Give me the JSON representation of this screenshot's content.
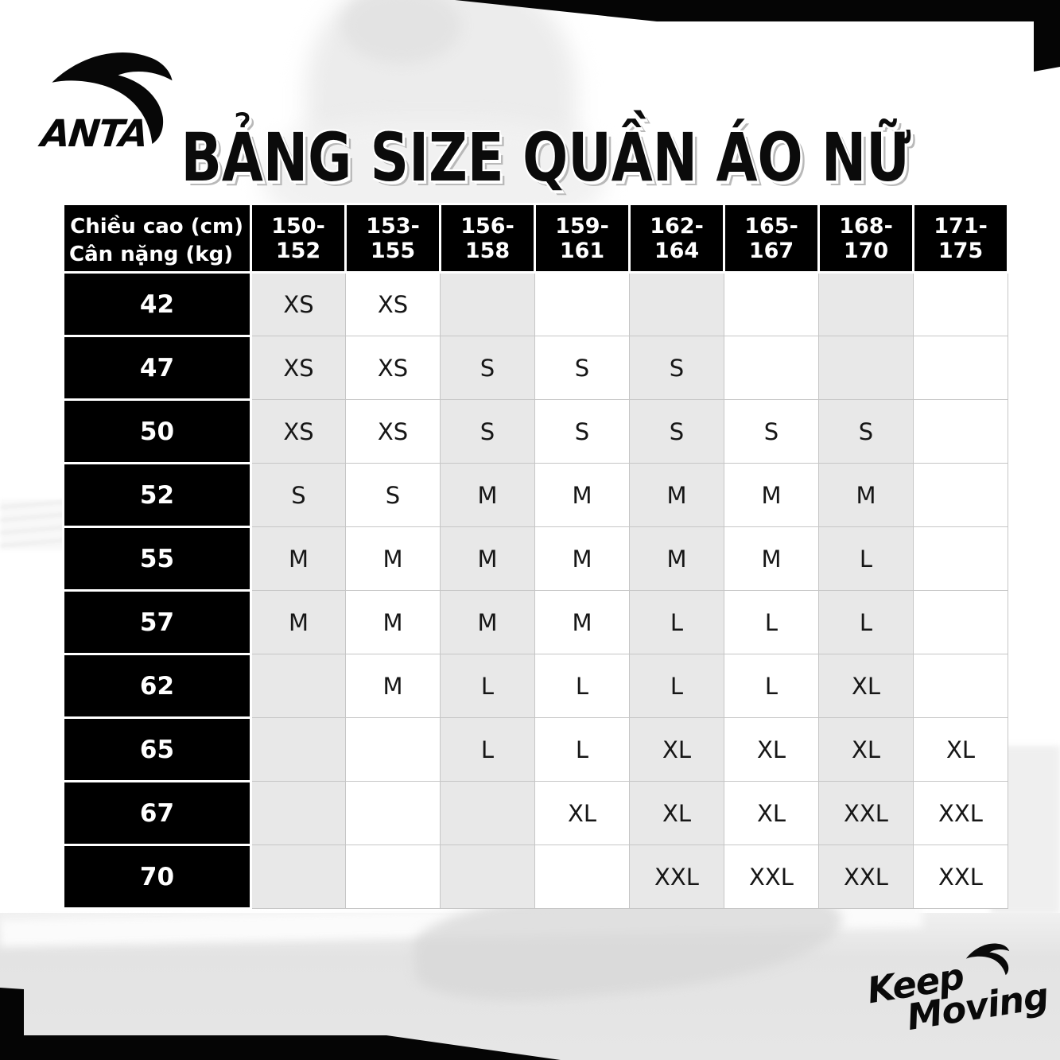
{
  "brand": {
    "name": "ANTA",
    "keep_moving_line1": "Keep",
    "keep_moving_line2": "Moving"
  },
  "title": "BẢNG SIZE QUẦN ÁO NỮ",
  "chart_data": {
    "type": "table",
    "title": "BẢNG SIZE QUẦN ÁO NỮ",
    "corner": {
      "top": "Chiều cao (cm)",
      "bottom": "Cân nặng (kg)"
    },
    "columns": [
      "150-152",
      "153-155",
      "156-158",
      "159-161",
      "162-164",
      "165-167",
      "168-170",
      "171-175"
    ],
    "rows": [
      {
        "weight": "42",
        "sizes": [
          "XS",
          "XS",
          "",
          "",
          "",
          "",
          "",
          ""
        ]
      },
      {
        "weight": "47",
        "sizes": [
          "XS",
          "XS",
          "S",
          "S",
          "S",
          "",
          "",
          ""
        ]
      },
      {
        "weight": "50",
        "sizes": [
          "XS",
          "XS",
          "S",
          "S",
          "S",
          "S",
          "S",
          ""
        ]
      },
      {
        "weight": "52",
        "sizes": [
          "S",
          "S",
          "M",
          "M",
          "M",
          "M",
          "M",
          ""
        ]
      },
      {
        "weight": "55",
        "sizes": [
          "M",
          "M",
          "M",
          "M",
          "M",
          "M",
          "L",
          ""
        ]
      },
      {
        "weight": "57",
        "sizes": [
          "M",
          "M",
          "M",
          "M",
          "L",
          "L",
          "L",
          ""
        ]
      },
      {
        "weight": "62",
        "sizes": [
          "",
          "M",
          "L",
          "L",
          "L",
          "L",
          "XL",
          ""
        ]
      },
      {
        "weight": "65",
        "sizes": [
          "",
          "",
          "L",
          "L",
          "XL",
          "XL",
          "XL",
          "XL"
        ]
      },
      {
        "weight": "67",
        "sizes": [
          "",
          "",
          "",
          "XL",
          "XL",
          "XL",
          "XXL",
          "XXL"
        ]
      },
      {
        "weight": "70",
        "sizes": [
          "",
          "",
          "",
          "",
          "XXL",
          "XXL",
          "XXL",
          "XXL"
        ]
      }
    ],
    "layout_hints": {
      "shaded_columns": [
        "150-152",
        "156-158",
        "162-164",
        "168-170"
      ],
      "grid": true
    }
  },
  "colors": {
    "header_bg": "#000000",
    "header_text": "#ffffff",
    "cell_gray": "#e8e8e8",
    "cell_white": "#ffffff",
    "value_text": "#161616",
    "grid_line": "#c6c6c6",
    "title_shadow": "#b9b9b9",
    "frame_black": "#050505"
  }
}
